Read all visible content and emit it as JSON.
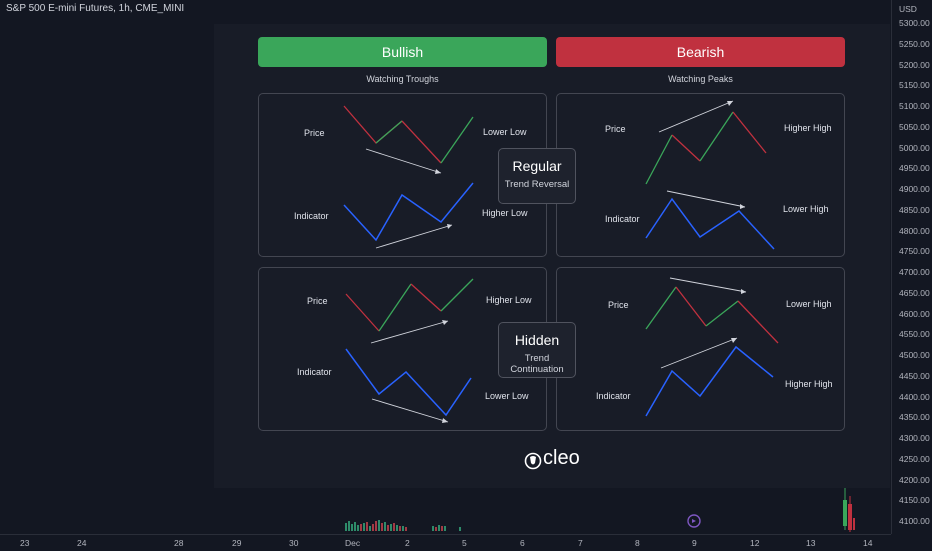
{
  "chart": {
    "symbol_title": "S&P 500 E-mini Futures, 1h, CME_MINI",
    "currency": "USD",
    "price_labels": [
      "5300.00",
      "5250.00",
      "5200.00",
      "5150.00",
      "5100.00",
      "5050.00",
      "5000.00",
      "4950.00",
      "4900.00",
      "4850.00",
      "4800.00",
      "4750.00",
      "4700.00",
      "4650.00",
      "4600.00",
      "4550.00",
      "4500.00",
      "4450.00",
      "4400.00",
      "4350.00",
      "4300.00",
      "4250.00",
      "4200.00",
      "4150.00",
      "4100.00"
    ],
    "time_labels": [
      "23",
      "24",
      "28",
      "29",
      "30",
      "Dec",
      "2",
      "5",
      "6",
      "7",
      "8",
      "9",
      "12",
      "13",
      "14"
    ]
  },
  "infographic": {
    "bullish": {
      "label": "Bullish",
      "sub": "Watching Troughs",
      "color": "#3aa65a"
    },
    "bearish": {
      "label": "Bearish",
      "sub": "Watching Peaks",
      "color": "#c0313f"
    },
    "regular": {
      "title": "Regular",
      "subtitle": "Trend Reversal"
    },
    "hidden": {
      "title": "Hidden",
      "subtitle": "Trend Continuation"
    },
    "panels": {
      "bull_regular": {
        "price": "Price",
        "indicator": "Indicator",
        "price_note": "Lower Low",
        "ind_note": "Higher Low"
      },
      "bear_regular": {
        "price": "Price",
        "indicator": "Indicator",
        "price_note": "Higher High",
        "ind_note": "Lower High"
      },
      "bull_hidden": {
        "price": "Price",
        "indicator": "Indicator",
        "price_note": "Higher Low",
        "ind_note": "Lower Low"
      },
      "bear_hidden": {
        "price": "Price",
        "indicator": "Indicator",
        "price_note": "Lower High",
        "ind_note": "Higher High"
      }
    },
    "logo_text": "cleo",
    "colors": {
      "up": "#3aa65a",
      "down": "#c0313f",
      "indicator": "#2962ff",
      "trend": "#d1d4dc"
    }
  }
}
